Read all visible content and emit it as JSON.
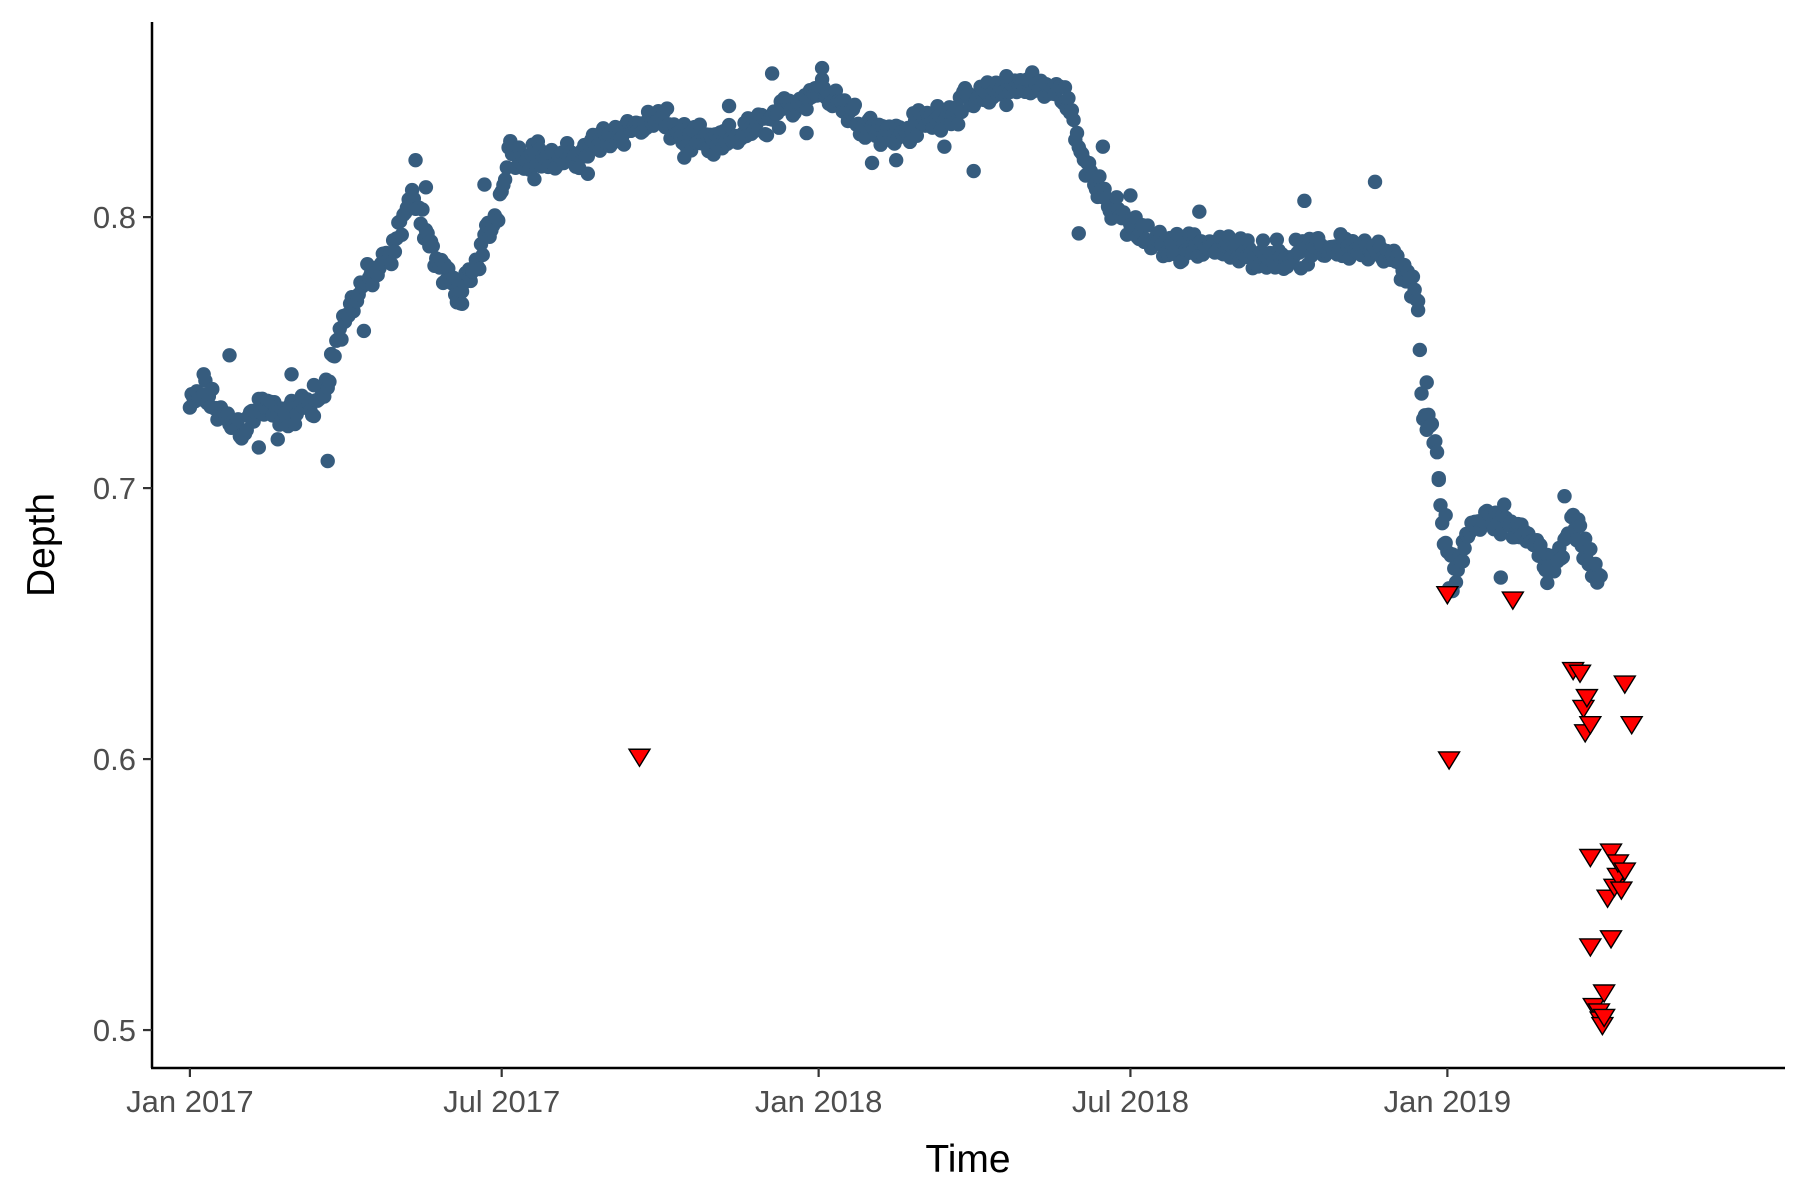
{
  "chart_data": {
    "type": "scatter",
    "title": "",
    "xlabel": "Time",
    "ylabel": "Depth",
    "x_axis": {
      "type": "date",
      "range": [
        "2016-12-10",
        "2019-07-16"
      ],
      "ticks": [
        {
          "value": "2017-01-01",
          "label": "Jan 2017"
        },
        {
          "value": "2017-07-01",
          "label": "Jul 2017"
        },
        {
          "value": "2018-01-01",
          "label": "Jan 2018"
        },
        {
          "value": "2018-07-01",
          "label": "Jul 2018"
        },
        {
          "value": "2019-01-01",
          "label": "Jan 2019"
        }
      ]
    },
    "y_axis": {
      "range": [
        0.486,
        0.872
      ],
      "ticks": [
        {
          "value": 0.5,
          "label": "0.5"
        },
        {
          "value": 0.6,
          "label": "0.6"
        },
        {
          "value": 0.7,
          "label": "0.7"
        },
        {
          "value": 0.8,
          "label": "0.8"
        }
      ]
    },
    "grid": false,
    "legend": "none",
    "series": [
      {
        "marker": "circle",
        "color": "#365C7E",
        "anchors": [
          [
            "2017-01-01",
            0.73
          ],
          [
            "2017-01-10",
            0.735
          ],
          [
            "2017-01-20",
            0.726
          ],
          [
            "2017-02-01",
            0.722
          ],
          [
            "2017-02-10",
            0.73
          ],
          [
            "2017-02-20",
            0.728
          ],
          [
            "2017-03-01",
            0.727
          ],
          [
            "2017-03-10",
            0.732
          ],
          [
            "2017-03-15",
            0.728
          ],
          [
            "2017-03-22",
            0.742
          ],
          [
            "2017-03-28",
            0.755
          ],
          [
            "2017-04-05",
            0.768
          ],
          [
            "2017-04-12",
            0.776
          ],
          [
            "2017-04-20",
            0.78
          ],
          [
            "2017-04-28",
            0.785
          ],
          [
            "2017-05-05",
            0.8
          ],
          [
            "2017-05-12",
            0.808
          ],
          [
            "2017-05-18",
            0.795
          ],
          [
            "2017-05-25",
            0.782
          ],
          [
            "2017-06-01",
            0.776
          ],
          [
            "2017-06-08",
            0.772
          ],
          [
            "2017-06-15",
            0.78
          ],
          [
            "2017-06-22",
            0.793
          ],
          [
            "2017-06-28",
            0.8
          ],
          [
            "2017-07-05",
            0.826
          ],
          [
            "2017-07-12",
            0.822
          ],
          [
            "2017-07-20",
            0.824
          ],
          [
            "2017-08-01",
            0.82
          ],
          [
            "2017-08-10",
            0.822
          ],
          [
            "2017-08-20",
            0.825
          ],
          [
            "2017-09-01",
            0.83
          ],
          [
            "2017-09-15",
            0.833
          ],
          [
            "2017-10-01",
            0.836
          ],
          [
            "2017-10-15",
            0.83
          ],
          [
            "2017-11-01",
            0.826
          ],
          [
            "2017-11-15",
            0.83
          ],
          [
            "2017-12-01",
            0.835
          ],
          [
            "2017-12-15",
            0.84
          ],
          [
            "2018-01-01",
            0.848
          ],
          [
            "2018-01-10",
            0.845
          ],
          [
            "2018-01-20",
            0.838
          ],
          [
            "2018-02-01",
            0.834
          ],
          [
            "2018-02-15",
            0.83
          ],
          [
            "2018-03-01",
            0.835
          ],
          [
            "2018-03-15",
            0.838
          ],
          [
            "2018-04-01",
            0.843
          ],
          [
            "2018-04-15",
            0.846
          ],
          [
            "2018-05-01",
            0.849
          ],
          [
            "2018-05-15",
            0.847
          ],
          [
            "2018-05-25",
            0.845
          ],
          [
            "2018-06-01",
            0.825
          ],
          [
            "2018-06-10",
            0.815
          ],
          [
            "2018-06-20",
            0.803
          ],
          [
            "2018-07-01",
            0.797
          ],
          [
            "2018-07-15",
            0.79
          ],
          [
            "2018-08-01",
            0.789
          ],
          [
            "2018-08-15",
            0.79
          ],
          [
            "2018-09-01",
            0.787
          ],
          [
            "2018-09-15",
            0.787
          ],
          [
            "2018-10-01",
            0.786
          ],
          [
            "2018-10-15",
            0.787
          ],
          [
            "2018-11-01",
            0.79
          ],
          [
            "2018-11-15",
            0.788
          ],
          [
            "2018-12-01",
            0.784
          ],
          [
            "2018-12-10",
            0.776
          ],
          [
            "2018-12-15",
            0.77
          ],
          [
            "2018-12-18",
            0.722
          ],
          [
            "2018-12-22",
            0.726
          ],
          [
            "2018-12-26",
            0.708
          ],
          [
            "2018-12-30",
            0.68
          ],
          [
            "2019-01-05",
            0.67
          ],
          [
            "2019-01-15",
            0.686
          ],
          [
            "2019-01-25",
            0.69
          ],
          [
            "2019-02-05",
            0.688
          ],
          [
            "2019-02-15",
            0.684
          ],
          [
            "2019-02-25",
            0.676
          ],
          [
            "2019-03-05",
            0.67
          ],
          [
            "2019-03-15",
            0.688
          ],
          [
            "2019-03-20",
            0.68
          ],
          [
            "2019-03-26",
            0.67
          ],
          [
            "2019-03-31",
            0.668
          ]
        ],
        "points": [
          [
            "2017-01-09",
            0.742
          ],
          [
            "2017-01-24",
            0.749
          ],
          [
            "2017-02-10",
            0.715
          ],
          [
            "2017-02-21",
            0.718
          ],
          [
            "2017-03-01",
            0.742
          ],
          [
            "2017-03-14",
            0.738
          ],
          [
            "2017-03-22",
            0.71
          ],
          [
            "2017-04-12",
            0.758
          ],
          [
            "2017-05-12",
            0.821
          ],
          [
            "2017-05-18",
            0.811
          ],
          [
            "2017-06-08",
            0.768
          ],
          [
            "2017-06-14",
            0.78
          ],
          [
            "2017-06-21",
            0.812
          ],
          [
            "2017-07-20",
            0.814
          ],
          [
            "2017-08-20",
            0.816
          ],
          [
            "2017-10-15",
            0.822
          ],
          [
            "2017-11-10",
            0.841
          ],
          [
            "2017-12-25",
            0.831
          ],
          [
            "2017-12-05",
            0.853
          ],
          [
            "2018-01-03",
            0.855
          ],
          [
            "2018-02-01",
            0.82
          ],
          [
            "2018-02-15",
            0.821
          ],
          [
            "2018-03-15",
            0.826
          ],
          [
            "2018-04-01",
            0.817
          ],
          [
            "2018-04-20",
            0.852
          ],
          [
            "2018-06-01",
            0.794
          ],
          [
            "2018-06-15",
            0.826
          ],
          [
            "2018-07-01",
            0.808
          ],
          [
            "2018-08-10",
            0.802
          ],
          [
            "2018-10-10",
            0.806
          ],
          [
            "2018-11-20",
            0.813
          ],
          [
            "2018-12-15",
            0.769
          ],
          [
            "2018-12-20",
            0.739
          ],
          [
            "2018-12-27",
            0.703
          ],
          [
            "2018-12-31",
            0.69
          ],
          [
            "2019-01-02",
            0.663
          ],
          [
            "2019-01-04",
            0.662
          ],
          [
            "2019-01-10",
            0.673
          ],
          [
            "2019-02-01",
            0.667
          ],
          [
            "2019-02-28",
            0.665
          ],
          [
            "2019-03-10",
            0.697
          ],
          [
            "2019-03-28",
            0.672
          ]
        ]
      },
      {
        "marker": "triangle-down",
        "color": "#FF0000",
        "outline": "#000000",
        "points": [
          [
            "2017-09-19",
            0.601
          ],
          [
            "2019-01-01",
            0.661
          ],
          [
            "2019-01-02",
            0.6
          ],
          [
            "2019-02-08",
            0.659
          ],
          [
            "2019-03-15",
            0.633
          ],
          [
            "2019-03-19",
            0.632
          ],
          [
            "2019-03-21",
            0.619
          ],
          [
            "2019-03-22",
            0.61
          ],
          [
            "2019-03-23",
            0.623
          ],
          [
            "2019-03-25",
            0.613
          ],
          [
            "2019-03-25",
            0.564
          ],
          [
            "2019-03-25",
            0.531
          ],
          [
            "2019-03-27",
            0.509
          ],
          [
            "2019-03-30",
            0.507
          ],
          [
            "2019-03-31",
            0.504
          ],
          [
            "2019-04-01",
            0.502
          ],
          [
            "2019-04-02",
            0.514
          ],
          [
            "2019-04-02",
            0.505
          ],
          [
            "2019-04-04",
            0.549
          ],
          [
            "2019-04-06",
            0.566
          ],
          [
            "2019-04-06",
            0.534
          ],
          [
            "2019-04-08",
            0.553
          ],
          [
            "2019-04-10",
            0.557
          ],
          [
            "2019-04-10",
            0.562
          ],
          [
            "2019-04-12",
            0.552
          ],
          [
            "2019-04-14",
            0.559
          ],
          [
            "2019-04-14",
            0.628
          ],
          [
            "2019-04-18",
            0.613
          ]
        ]
      }
    ]
  }
}
